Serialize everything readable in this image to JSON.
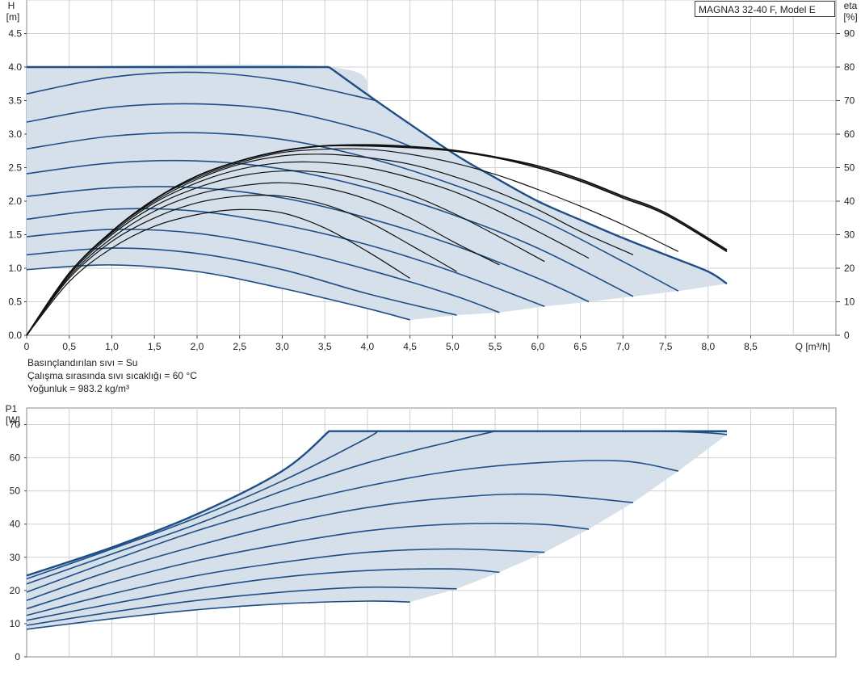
{
  "model_label": "MAGNA3 32-40 F, Model E",
  "fluid_info": {
    "line1": "Basınçlandırılan sıvı = Su",
    "line2": "Çalışma sırasında sıvı sıcaklığı = 60 °C",
    "line3": "Yoğunluk = 983.2 kg/m³"
  },
  "colors": {
    "curve": "#1f4e86",
    "fill": "#d5e0ea",
    "eff": "#111111",
    "grid": "#d0d0d0"
  },
  "chart_data": [
    {
      "type": "line",
      "title": "",
      "xlabel": "Q [m³/h]",
      "ylabel_top": "H",
      "ylabel_unit": "[m]",
      "y2label_top": "eta",
      "y2label_unit": "[%]",
      "xlim": [
        0,
        9.5
      ],
      "ylim": [
        0,
        5.0
      ],
      "y2lim": [
        0,
        100
      ],
      "x_ticks": [
        "0",
        "0,5",
        "1,0",
        "1,5",
        "2,0",
        "2,5",
        "3,0",
        "3,5",
        "4,0",
        "4,5",
        "5,0",
        "5,5",
        "6,0",
        "6,5",
        "7,0",
        "7,5",
        "8,0",
        "8,5"
      ],
      "y_ticks": [
        "0.0",
        "0.5",
        "1.0",
        "1.5",
        "2.0",
        "2.5",
        "3.0",
        "3.5",
        "4.0",
        "4.5"
      ],
      "y2_ticks": [
        "0",
        "10",
        "20",
        "30",
        "40",
        "50",
        "60",
        "70",
        "80",
        "90"
      ],
      "grid": true,
      "max_curve": {
        "x": [
          0,
          3.55,
          4.1,
          5.0,
          5.5,
          6.0,
          6.5,
          7.0,
          7.5,
          8.0,
          8.22
        ],
        "y": [
          4.0,
          4.0,
          3.5,
          2.72,
          2.35,
          2.0,
          1.72,
          1.45,
          1.2,
          0.95,
          0.77
        ]
      },
      "head_series": [
        {
          "x": [
            0,
            1.0,
            2.0,
            3.0,
            4.0,
            4.5
          ],
          "y": [
            0.98,
            1.05,
            0.95,
            0.7,
            0.4,
            0.23
          ]
        },
        {
          "x": [
            0,
            1.0,
            2.0,
            3.0,
            4.0,
            5.05
          ],
          "y": [
            1.2,
            1.3,
            1.22,
            0.98,
            0.62,
            0.3
          ]
        },
        {
          "x": [
            0,
            1.0,
            2.0,
            3.0,
            4.0,
            5.0,
            5.55
          ],
          "y": [
            1.47,
            1.58,
            1.52,
            1.3,
            0.98,
            0.6,
            0.34
          ]
        },
        {
          "x": [
            0,
            1.0,
            2.0,
            3.0,
            4.0,
            5.0,
            6.08
          ],
          "y": [
            1.73,
            1.88,
            1.85,
            1.65,
            1.35,
            0.95,
            0.43
          ]
        },
        {
          "x": [
            0,
            1.0,
            2.0,
            3.0,
            4.0,
            5.0,
            6.0,
            6.6
          ],
          "y": [
            2.07,
            2.2,
            2.2,
            2.05,
            1.75,
            1.35,
            0.85,
            0.5
          ]
        },
        {
          "x": [
            0,
            1.0,
            2.0,
            3.0,
            4.0,
            5.0,
            6.0,
            7.12
          ],
          "y": [
            2.41,
            2.57,
            2.6,
            2.48,
            2.2,
            1.8,
            1.3,
            0.58
          ]
        },
        {
          "x": [
            0,
            1.0,
            2.0,
            3.0,
            4.0,
            5.0,
            6.0,
            7.0,
            7.65
          ],
          "y": [
            2.78,
            2.97,
            3.02,
            2.92,
            2.65,
            2.25,
            1.75,
            1.1,
            0.66
          ]
        },
        {
          "x": [
            0,
            1.0,
            2.0,
            3.0,
            4.0,
            4.5
          ],
          "y": [
            3.18,
            3.4,
            3.45,
            3.35,
            3.05,
            2.82
          ]
        },
        {
          "x": [
            0,
            1.0,
            2.0,
            3.0,
            4.1
          ],
          "y": [
            3.6,
            3.85,
            3.92,
            3.8,
            3.5
          ]
        }
      ],
      "efficiency_series": [
        {
          "x": [
            0,
            0.5,
            1.0,
            1.5,
            2.0,
            2.5,
            3.0,
            3.5,
            4.0,
            4.5
          ],
          "y": [
            0,
            16,
            26,
            32.5,
            36,
            37.5,
            36.5,
            32,
            25,
            17
          ]
        },
        {
          "x": [
            0,
            0.5,
            1.0,
            1.5,
            2.0,
            2.5,
            3.0,
            3.5,
            4.0,
            4.5,
            5.05
          ],
          "y": [
            0,
            17,
            28,
            35,
            39.5,
            41.5,
            41.5,
            39,
            34,
            27,
            19
          ]
        },
        {
          "x": [
            0,
            0.5,
            1.0,
            1.5,
            2.0,
            2.5,
            3.0,
            3.5,
            4.0,
            4.5,
            5.0,
            5.55
          ],
          "y": [
            0,
            17.5,
            29,
            37,
            42,
            44.5,
            45.5,
            44,
            40.5,
            35,
            28,
            21
          ]
        },
        {
          "x": [
            0,
            0.5,
            1.0,
            1.5,
            2.0,
            2.5,
            3.0,
            3.5,
            4.0,
            4.5,
            5.0,
            5.5,
            6.08
          ],
          "y": [
            0,
            18,
            30,
            38.5,
            44,
            47.5,
            49,
            48.5,
            46,
            42,
            36.5,
            30,
            22
          ]
        },
        {
          "x": [
            0,
            0.5,
            1.0,
            1.5,
            2.0,
            2.5,
            3.0,
            3.5,
            4.0,
            4.5,
            5.0,
            5.5,
            6.0,
            6.6
          ],
          "y": [
            0,
            18.5,
            30.5,
            39.5,
            45.5,
            49.5,
            51.5,
            51.5,
            50,
            47,
            43,
            37.5,
            31,
            23
          ]
        },
        {
          "x": [
            0,
            0.5,
            1.0,
            1.5,
            2.0,
            2.5,
            3.0,
            3.5,
            4.0,
            4.5,
            5.0,
            5.5,
            6.0,
            6.5,
            7.12
          ],
          "y": [
            0,
            18.5,
            31,
            40,
            46.5,
            51,
            53.5,
            54,
            53,
            51,
            47.5,
            43,
            37.5,
            31,
            24
          ]
        },
        {
          "x": [
            0,
            0.5,
            1.0,
            1.5,
            2.0,
            2.5,
            3.0,
            3.5,
            4.0,
            4.5,
            5.0,
            5.5,
            6.0,
            6.5,
            7.0,
            7.65
          ],
          "y": [
            0,
            18.5,
            31,
            40.5,
            47,
            51.5,
            54.5,
            55.5,
            55.5,
            54,
            51.5,
            48,
            43.5,
            38.5,
            33,
            25
          ]
        },
        {
          "x": [
            0,
            0.5,
            1.0,
            1.5,
            2.0,
            2.5,
            3.0,
            3.5,
            4.0,
            4.5,
            5.0,
            5.5,
            6.0,
            6.5,
            7.0,
            7.5,
            8.22
          ],
          "y": [
            0,
            18.5,
            31,
            40.5,
            47.5,
            52,
            55,
            56.5,
            56.5,
            56,
            55,
            53,
            50,
            46,
            41,
            36,
            25
          ]
        },
        {
          "x": [
            0,
            0.5,
            1.0,
            1.5,
            2.0,
            2.5,
            3.0,
            3.5,
            4.0,
            4.5,
            5.0,
            5.5,
            6.0,
            6.5,
            7.0,
            7.5,
            8.22
          ],
          "y": [
            0,
            18.5,
            31,
            40.5,
            47.5,
            52,
            55,
            56.5,
            56.8,
            56.3,
            55.2,
            53.2,
            50.5,
            46.5,
            41.5,
            36.5,
            25.5
          ]
        }
      ]
    },
    {
      "type": "line",
      "title": "",
      "xlabel": "",
      "ylabel_top": "P1",
      "ylabel_unit": "[W]",
      "xlim": [
        0,
        9.5
      ],
      "ylim": [
        0,
        75
      ],
      "y_ticks": [
        "0",
        "10",
        "20",
        "30",
        "40",
        "50",
        "60",
        "70"
      ],
      "grid": true,
      "max_curve": {
        "x": [
          0,
          1.0,
          2.0,
          3.0,
          3.55,
          8.22
        ],
        "y": [
          24.5,
          33,
          43,
          56,
          68,
          68
        ]
      },
      "power_series": [
        {
          "x": [
            0,
            1.0,
            2.0,
            3.0,
            4.0,
            4.5
          ],
          "y": [
            8.3,
            11.5,
            14.2,
            16,
            16.8,
            16.5
          ]
        },
        {
          "x": [
            0,
            1.0,
            2.0,
            3.0,
            4.0,
            5.05
          ],
          "y": [
            9.5,
            13.5,
            17,
            19.5,
            21,
            20.5
          ]
        },
        {
          "x": [
            0,
            1.0,
            2.0,
            3.0,
            4.0,
            5.0,
            5.55
          ],
          "y": [
            11,
            16,
            20.5,
            24,
            26,
            26.5,
            25.5
          ]
        },
        {
          "x": [
            0,
            1.0,
            2.0,
            3.0,
            4.0,
            5.0,
            6.08
          ],
          "y": [
            12.5,
            19,
            24.5,
            28.5,
            31.5,
            32.5,
            31.5
          ]
        },
        {
          "x": [
            0,
            1.0,
            2.0,
            3.0,
            4.0,
            5.0,
            6.0,
            6.6
          ],
          "y": [
            14.5,
            22.5,
            29,
            34,
            38,
            40,
            40,
            38.5
          ]
        },
        {
          "x": [
            0,
            1.0,
            2.0,
            3.0,
            4.0,
            5.0,
            6.0,
            7.12
          ],
          "y": [
            17,
            26,
            33.5,
            40,
            45,
            48,
            49,
            46.5
          ]
        },
        {
          "x": [
            0,
            1.0,
            2.0,
            3.0,
            4.0,
            5.0,
            6.0,
            7.0,
            7.65
          ],
          "y": [
            19.5,
            29,
            38,
            45.5,
            51.5,
            56,
            58.5,
            59,
            56
          ]
        },
        {
          "x": [
            0,
            1.0,
            2.0,
            3.0,
            4.0,
            5.0,
            5.5
          ],
          "y": [
            22,
            31,
            40,
            50,
            58.5,
            65,
            68
          ]
        },
        {
          "x": [
            0,
            1.0,
            2.0,
            3.0,
            4.0,
            4.1
          ],
          "y": [
            23.5,
            32.5,
            42,
            53,
            66,
            68
          ]
        },
        {
          "x": [
            7.5,
            8.0,
            8.22
          ],
          "y": [
            68,
            67.5,
            67
          ]
        }
      ]
    }
  ]
}
